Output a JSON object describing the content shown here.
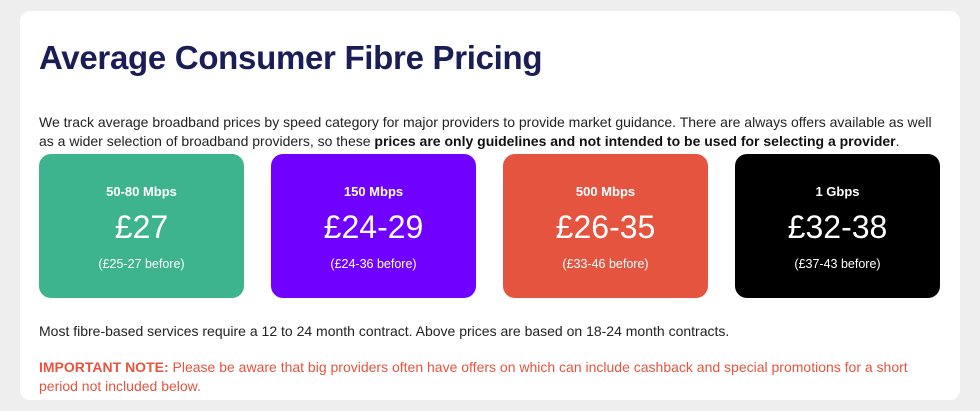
{
  "title": "Average Consumer Fibre Pricing",
  "intro": {
    "text": "We track average broadband prices by speed category for major providers to provide market guidance. There are always offers available as well as a wider selection of broadband providers, so these ",
    "bold": "prices are only guidelines and not intended to be used for selecting a provider",
    "end": "."
  },
  "cards": [
    {
      "speed": "50-80 Mbps",
      "price": "£27",
      "before": "(£25-27 before)",
      "color": "#3db48e"
    },
    {
      "speed": "150 Mbps",
      "price": "£24-29",
      "before": "(£24-36 before)",
      "color": "#7000ff"
    },
    {
      "speed": "500 Mbps",
      "price": "£26-35",
      "before": "(£33-46 before)",
      "color": "#e5543f"
    },
    {
      "speed": "1 Gbps",
      "price": "£32-38",
      "before": "(£37-43 before)",
      "color": "#000000"
    }
  ],
  "contract_text": "Most fibre-based services require a 12 to 24 month contract. Above prices are based on 18-24 month contracts.",
  "note": {
    "label": "IMPORTANT NOTE:",
    "text": " Please be aware that big providers often have offers on which can include cashback and special promotions for a short period not included below."
  }
}
